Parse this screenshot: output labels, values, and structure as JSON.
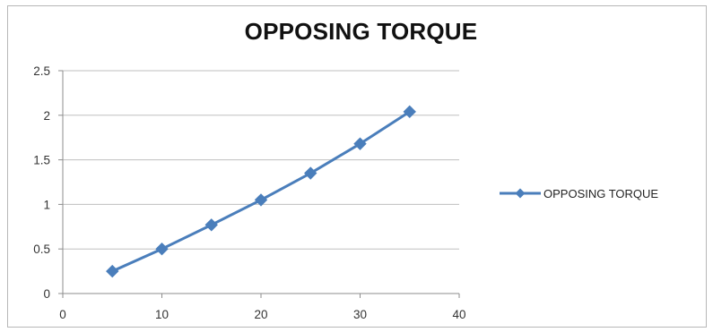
{
  "chart_data": {
    "type": "line",
    "title": "OPPOSING TORQUE",
    "xlabel": "",
    "ylabel": "",
    "xlim": [
      0,
      40
    ],
    "ylim": [
      0,
      2.5
    ],
    "x_ticks": [
      0,
      10,
      20,
      30,
      40
    ],
    "y_ticks": [
      0,
      0.5,
      1,
      1.5,
      2,
      2.5
    ],
    "grid": "horizontal",
    "legend_position": "right",
    "series": [
      {
        "name": "OPPOSING TORQUE",
        "color": "#4a7ebb",
        "marker": "diamond",
        "x": [
          5,
          10,
          15,
          20,
          25,
          30,
          35
        ],
        "y": [
          0.25,
          0.5,
          0.77,
          1.05,
          1.35,
          1.68,
          2.04
        ]
      }
    ]
  }
}
